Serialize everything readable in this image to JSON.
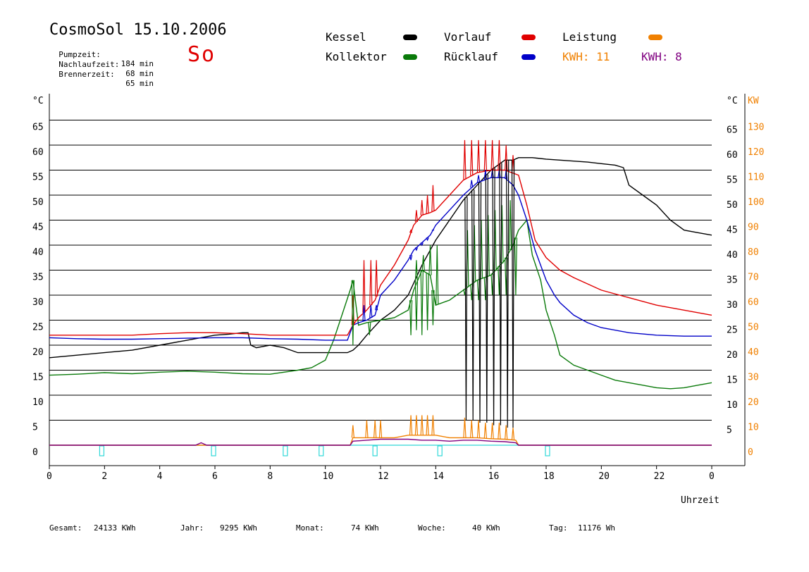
{
  "header": {
    "title": "CosmoSol 15.10.2006",
    "weekday": "So",
    "stats": [
      {
        "label": "Pumpzeit:",
        "value": "184 min"
      },
      {
        "label": "Nachlaufzeit:",
        "value": "68 min"
      },
      {
        "label": "Brennerzeit:",
        "value": "65 min"
      }
    ]
  },
  "legend": {
    "kessel": "Kessel",
    "kollektor": "Kollektor",
    "vorlauf": "Vorlauf",
    "ruecklauf": "Rücklauf",
    "leistung": "Leistung",
    "kwh1": "KWH: 11",
    "kwh2": "KWH: 8"
  },
  "colors": {
    "kessel": "#000000",
    "kollektor": "#0a7a0a",
    "vorlauf": "#e00000",
    "ruecklauf": "#0000c8",
    "leistung": "#f08000",
    "kwh2": "#800080",
    "pump": "#30d8d8"
  },
  "footer": {
    "gesamt_label": "Gesamt:",
    "gesamt_value": "24133 KWh",
    "jahr_label": "Jahr:",
    "jahr_value": "9295 KWh",
    "monat_label": "Monat:",
    "monat_value": "74 KWh",
    "woche_label": "Woche:",
    "woche_value": "40 KWh",
    "tag_label": "Tag:",
    "tag_value": "11176 Wh"
  },
  "chart_data": {
    "type": "line",
    "xlabel": "Uhrzeit",
    "ylabel_left": "°C",
    "ylabel_right_1": "°C",
    "ylabel_right_2": "KW",
    "xlim": [
      0,
      24
    ],
    "ylim": [
      -4,
      65
    ],
    "x_tick_labels": [
      "0",
      "2",
      "4",
      "6",
      "8",
      "10",
      "12",
      "14",
      "16",
      "18",
      "20",
      "22",
      "0"
    ],
    "y_left_ticks": [
      0,
      5,
      10,
      15,
      20,
      25,
      30,
      35,
      40,
      45,
      50,
      55,
      60,
      65
    ],
    "y_right_ticks": [
      5,
      10,
      15,
      20,
      25,
      30,
      35,
      40,
      45,
      50,
      55,
      60,
      65
    ],
    "y_right2_ticks": [
      0,
      10,
      20,
      30,
      40,
      50,
      60,
      70,
      80,
      90,
      100,
      110,
      120,
      130
    ],
    "gridlines_y": [
      5,
      10,
      15,
      20,
      25,
      30,
      35,
      40,
      45,
      50,
      55,
      60,
      65
    ],
    "series": [
      {
        "name": "Kessel",
        "color": "#000000",
        "x": [
          0,
          1,
          2,
          3,
          4,
          5,
          6,
          6.5,
          7,
          7.2,
          7.3,
          7.5,
          8,
          8.5,
          9,
          9.5,
          10,
          10.5,
          10.8,
          11,
          11.2,
          11.5,
          12,
          12.5,
          13,
          13.5,
          14,
          14.5,
          15,
          15.5,
          16,
          16.5,
          16.8,
          17,
          17.5,
          18,
          18.5,
          19,
          19.5,
          20,
          20.5,
          20.8,
          21,
          21.5,
          22,
          22.5,
          23,
          23.5,
          24
        ],
        "y": [
          17.5,
          18,
          18.5,
          19,
          20,
          21,
          22,
          22.2,
          22.5,
          22.5,
          20,
          19.5,
          20,
          19.5,
          18.5,
          18.5,
          18.5,
          18.5,
          18.5,
          19,
          20,
          22,
          25,
          27,
          30,
          36,
          41,
          45,
          49,
          52,
          55,
          57,
          57,
          57.5,
          57.5,
          57.2,
          57,
          56.8,
          56.6,
          56.3,
          56,
          55.5,
          52,
          50,
          48,
          45,
          43,
          42.5,
          42
        ]
      },
      {
        "name": "Kollektor",
        "color": "#0a7a0a",
        "x": [
          0,
          1,
          2,
          3,
          4,
          5,
          6,
          7,
          8,
          9,
          9.5,
          10,
          10.3,
          10.6,
          10.9,
          11,
          11.2,
          11.5,
          12,
          12.5,
          13,
          13.2,
          13.5,
          13.8,
          14,
          14.5,
          15,
          15.5,
          16,
          16.5,
          16.8,
          17,
          17.3,
          17.5,
          17.8,
          18,
          18.3,
          18.5,
          19,
          19.5,
          20,
          20.5,
          21,
          21.5,
          22,
          22.5,
          23,
          23.5,
          24
        ],
        "y": [
          14,
          14.2,
          14.5,
          14.3,
          14.6,
          14.8,
          14.6,
          14.3,
          14.2,
          15,
          15.5,
          17,
          21,
          26,
          31,
          33,
          24,
          24.5,
          25,
          25.5,
          27,
          31,
          35,
          34,
          28,
          29,
          31,
          33,
          34,
          37,
          40,
          43,
          45,
          38,
          33,
          27,
          22,
          18,
          16,
          15,
          14,
          13,
          12.5,
          12,
          11.5,
          11.3,
          11.5,
          12,
          12.5
        ]
      },
      {
        "name": "Vorlauf",
        "color": "#e00000",
        "x": [
          0,
          1,
          2,
          3,
          4,
          5,
          6,
          7,
          8,
          9,
          10,
          10.8,
          11,
          11.2,
          11.5,
          11.8,
          12,
          12.5,
          13,
          13.2,
          13.5,
          13.8,
          14,
          14.5,
          15,
          15.5,
          16,
          16.5,
          17,
          17.3,
          17.6,
          18,
          18.5,
          19,
          20,
          21,
          22,
          23,
          24
        ],
        "y": [
          22,
          22,
          22,
          22,
          22.3,
          22.5,
          22.5,
          22.3,
          22,
          22,
          22,
          22,
          24,
          25.5,
          27,
          29,
          32,
          36,
          41,
          44,
          46,
          46.5,
          47,
          50,
          53,
          54.5,
          55,
          55,
          54,
          48,
          41,
          37.5,
          35,
          33.5,
          31,
          29.5,
          28,
          27,
          26
        ]
      },
      {
        "name": "Rücklauf",
        "color": "#0000c8",
        "x": [
          0,
          1,
          2,
          3,
          4,
          5,
          6,
          7,
          8,
          9,
          10,
          10.8,
          11,
          11.2,
          11.5,
          11.8,
          12,
          12.5,
          13,
          13.2,
          13.5,
          13.8,
          14,
          14.5,
          15,
          15.5,
          16,
          16.5,
          16.8,
          17,
          17.3,
          17.6,
          18,
          18.3,
          18.5,
          19,
          19.5,
          20,
          21,
          22,
          23,
          24
        ],
        "y": [
          21.5,
          21.3,
          21.2,
          21.2,
          21.3,
          21.4,
          21.5,
          21.5,
          21.3,
          21.2,
          21,
          21,
          24,
          24.5,
          25,
          26,
          30,
          33,
          37,
          39,
          40.5,
          42,
          44,
          47,
          50,
          52.5,
          53.5,
          53.5,
          52,
          50,
          45,
          39,
          33,
          30,
          28.5,
          26,
          24.5,
          23.5,
          22.5,
          22,
          21.8,
          21.8
        ]
      },
      {
        "name": "Leistung",
        "color": "#f08000",
        "x": [
          0,
          10.9,
          11,
          11.5,
          12,
          12.5,
          13,
          13.5,
          14,
          14.5,
          15,
          15.5,
          16,
          16.5,
          16.9,
          17,
          24
        ],
        "y": [
          0,
          0,
          1.5,
          1.5,
          1.5,
          1.5,
          2,
          2,
          2,
          1.5,
          1.5,
          1.5,
          1.3,
          1.2,
          1,
          0,
          0
        ]
      },
      {
        "name": "KWH 2",
        "color": "#800080",
        "x": [
          0,
          5.3,
          5.5,
          5.7,
          10.9,
          11,
          11.5,
          12,
          12.5,
          13,
          13.5,
          14,
          14.5,
          15,
          15.5,
          16,
          16.5,
          16.9,
          17,
          24
        ],
        "y": [
          0,
          0,
          0.5,
          0,
          0,
          0.8,
          1,
          1.2,
          1.2,
          1.2,
          1,
          1,
          0.8,
          1,
          1,
          0.8,
          0.7,
          0.5,
          0,
          0
        ]
      }
    ],
    "spikes": [
      {
        "series": "Vorlauf",
        "color": "#e00000",
        "peaks": [
          [
            11,
            30
          ],
          [
            11.4,
            37
          ],
          [
            11.65,
            37
          ],
          [
            11.85,
            37
          ],
          [
            13.1,
            43
          ],
          [
            13.3,
            47
          ],
          [
            13.5,
            49
          ],
          [
            13.7,
            50
          ],
          [
            13.9,
            52
          ],
          [
            15.05,
            61
          ],
          [
            15.3,
            61
          ],
          [
            15.55,
            61
          ],
          [
            15.8,
            61
          ],
          [
            16.05,
            61
          ],
          [
            16.3,
            61
          ],
          [
            16.55,
            60
          ],
          [
            16.8,
            58
          ]
        ]
      },
      {
        "series": "Rücklauf",
        "color": "#0000c8",
        "peaks": [
          [
            11.4,
            28
          ],
          [
            11.65,
            28
          ],
          [
            11.85,
            28
          ],
          [
            13.1,
            37
          ],
          [
            13.3,
            39
          ],
          [
            13.5,
            40
          ],
          [
            13.7,
            41
          ],
          [
            13.9,
            43
          ],
          [
            15.3,
            53
          ],
          [
            15.55,
            54
          ],
          [
            15.8,
            55
          ],
          [
            16.05,
            55
          ],
          [
            16.3,
            55
          ],
          [
            16.55,
            55
          ],
          [
            16.8,
            52
          ]
        ]
      },
      {
        "series": "Kollektor",
        "color": "#0a7a0a",
        "troughs": [
          [
            11,
            20
          ],
          [
            11.6,
            22
          ],
          [
            13.1,
            22
          ],
          [
            13.3,
            23
          ],
          [
            13.5,
            22
          ],
          [
            13.7,
            23
          ],
          [
            13.9,
            24
          ],
          [
            15.05,
            30
          ],
          [
            15.3,
            29
          ],
          [
            15.55,
            29
          ],
          [
            15.8,
            29
          ],
          [
            16.05,
            30
          ],
          [
            16.3,
            30
          ],
          [
            16.55,
            30
          ],
          [
            16.9,
            30
          ]
        ],
        "peaks": [
          [
            13.3,
            37
          ],
          [
            13.55,
            38
          ],
          [
            13.8,
            40
          ],
          [
            14.05,
            40
          ],
          [
            15.15,
            43
          ],
          [
            15.4,
            44
          ],
          [
            15.65,
            45
          ],
          [
            15.9,
            46
          ],
          [
            16.15,
            47
          ],
          [
            16.4,
            48
          ],
          [
            16.7,
            49
          ]
        ]
      },
      {
        "series": "Leistung",
        "color": "#f08000",
        "peaks": [
          [
            11,
            4
          ],
          [
            11.5,
            5
          ],
          [
            11.8,
            5
          ],
          [
            12,
            5
          ],
          [
            13.1,
            6
          ],
          [
            13.3,
            6
          ],
          [
            13.5,
            6
          ],
          [
            13.7,
            6
          ],
          [
            13.9,
            6
          ],
          [
            15.05,
            5.5
          ],
          [
            15.3,
            5
          ],
          [
            15.55,
            5
          ],
          [
            15.8,
            4.5
          ],
          [
            16.05,
            4.5
          ],
          [
            16.3,
            4.5
          ],
          [
            16.55,
            4
          ],
          [
            16.8,
            3.5
          ]
        ]
      },
      {
        "series": "Kessel",
        "color": "#000000",
        "peaks": [
          [
            15.1,
            5
          ],
          [
            15.35,
            5
          ],
          [
            15.6,
            4.5
          ],
          [
            15.85,
            4.5
          ],
          [
            16.1,
            4
          ],
          [
            16.35,
            4
          ],
          [
            16.6,
            3.5
          ],
          [
            16.8,
            3.5
          ]
        ]
      }
    ],
    "pump_markers_x": [
      1.9,
      5.95,
      8.55,
      9.85,
      11.8,
      14.15,
      18.05
    ]
  }
}
